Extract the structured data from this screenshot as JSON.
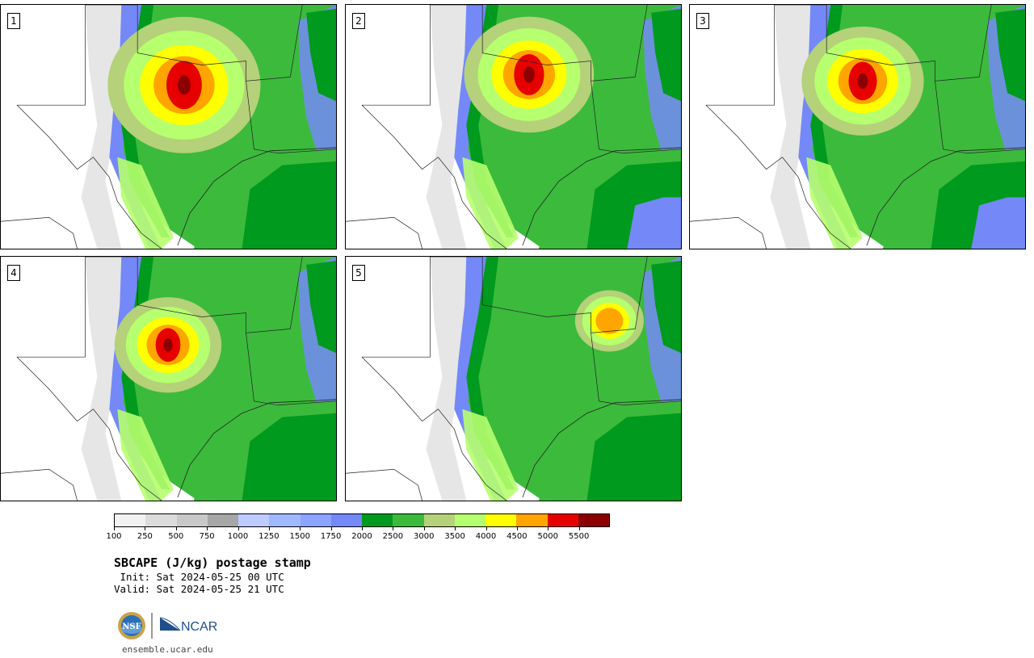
{
  "panels": [
    {
      "label": "1"
    },
    {
      "label": "2"
    },
    {
      "label": "3"
    },
    {
      "label": "4"
    },
    {
      "label": "5"
    }
  ],
  "colorbar": {
    "bins": [
      {
        "lo": 100,
        "color": "#f2f2f2"
      },
      {
        "lo": 250,
        "color": "#dcdcdc"
      },
      {
        "lo": 500,
        "color": "#c8c8c8"
      },
      {
        "lo": 750,
        "color": "#a6a6a6"
      },
      {
        "lo": 1000,
        "color": "#bdcbff"
      },
      {
        "lo": 1250,
        "color": "#9fb8ff"
      },
      {
        "lo": 1500,
        "color": "#8ca3ff"
      },
      {
        "lo": 1750,
        "color": "#7489f7"
      },
      {
        "lo": 2000,
        "color": "#009a1e"
      },
      {
        "lo": 2500,
        "color": "#3cba3c"
      },
      {
        "lo": 3000,
        "color": "#b5d179"
      },
      {
        "lo": 3500,
        "color": "#b6ff6e"
      },
      {
        "lo": 4000,
        "color": "#ffff00"
      },
      {
        "lo": 4500,
        "color": "#ffa500"
      },
      {
        "lo": 5000,
        "color": "#e60000"
      },
      {
        "lo": 5500,
        "color": "#8b0000"
      }
    ],
    "tick_labels": [
      "100",
      "250",
      "500",
      "750",
      "1000",
      "1250",
      "1500",
      "1750",
      "2000",
      "2500",
      "3000",
      "3500",
      "4000",
      "4500",
      "5000",
      "5500"
    ]
  },
  "title": "SBCAPE (J/kg) postage stamp",
  "init": " Init: Sat 2024-05-25 00 UTC",
  "valid": "Valid: Sat 2024-05-25 21 UTC",
  "logos": {
    "nsf": "NSF",
    "ncar": "NCAR"
  },
  "site": "ensemble.ucar.edu"
}
